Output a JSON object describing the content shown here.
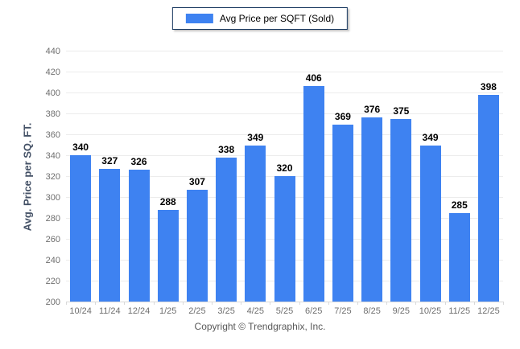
{
  "legend": {
    "label": "Avg Price per SQFT (Sold)"
  },
  "footer": {
    "copyright": "Copyright © Trendgraphix, Inc."
  },
  "colors": {
    "bar": "#3e82f1",
    "legend_border": "#17375e",
    "gridline": "#ececec",
    "axis_line": "#d9d9d9",
    "tick_label": "#6e6e6e",
    "value_label": "#000000",
    "axis_title": "#445166"
  },
  "chart_data": {
    "type": "bar",
    "title": "",
    "legend": "Avg Price per SQFT (Sold)",
    "categories": [
      "10/24",
      "11/24",
      "12/24",
      "1/25",
      "2/25",
      "3/25",
      "4/25",
      "5/25",
      "6/25",
      "7/25",
      "8/25",
      "9/25",
      "10/25",
      "11/25",
      "12/25"
    ],
    "values": [
      340,
      327,
      326,
      288,
      307,
      338,
      349,
      320,
      406,
      369,
      376,
      375,
      349,
      285,
      398
    ],
    "xlabel": "",
    "ylabel": "Avg. Price per SQ. FT.",
    "ylim": [
      200,
      440
    ],
    "ytick_step": 20,
    "grid": "horizontal",
    "legend_position": "top-center",
    "value_labels": "above-bars"
  }
}
